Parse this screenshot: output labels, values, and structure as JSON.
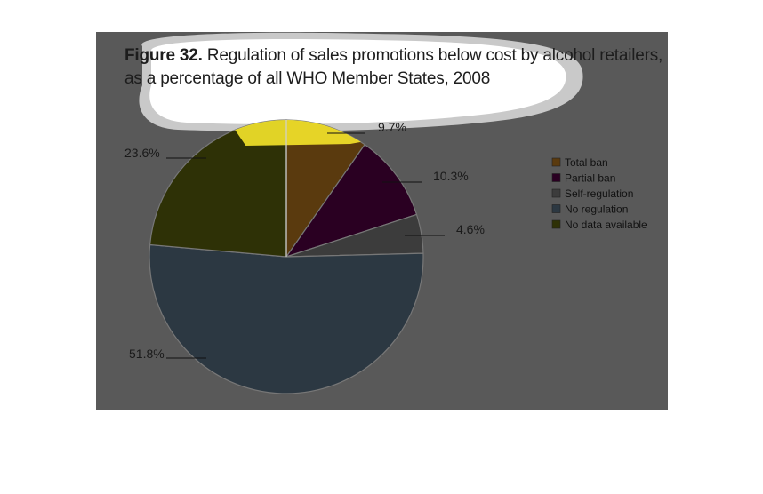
{
  "figure": {
    "label": "Figure 32.",
    "title_rest": "Regulation of sales promotions below cost by alcohol retailers,",
    "title_line2": "as a percentage of all WHO Member States, 2008"
  },
  "chart_data": {
    "type": "pie",
    "title": "Figure 32. Regulation of sales promotions below cost by alcohol retailers, as a percentage of all WHO Member States, 2008",
    "legend_position": "right",
    "slices": [
      {
        "name": "Total ban",
        "value": 9.7,
        "label": "9.7%",
        "color": "#5a3a0e"
      },
      {
        "name": "Partial ban",
        "value": 10.3,
        "label": "10.3%",
        "color": "#2a0022"
      },
      {
        "name": "Self-regulation",
        "value": 4.6,
        "label": "4.6%",
        "color": "#3c3c3c"
      },
      {
        "name": "No regulation",
        "value": 51.8,
        "label": "51.8%",
        "color": "#2c3842"
      },
      {
        "name": "No data available",
        "value": 23.6,
        "label": "23.6%",
        "color": "#2e3106"
      }
    ],
    "highlight": {
      "color": "#f5e62a",
      "edge_color": "#d8e640"
    }
  }
}
